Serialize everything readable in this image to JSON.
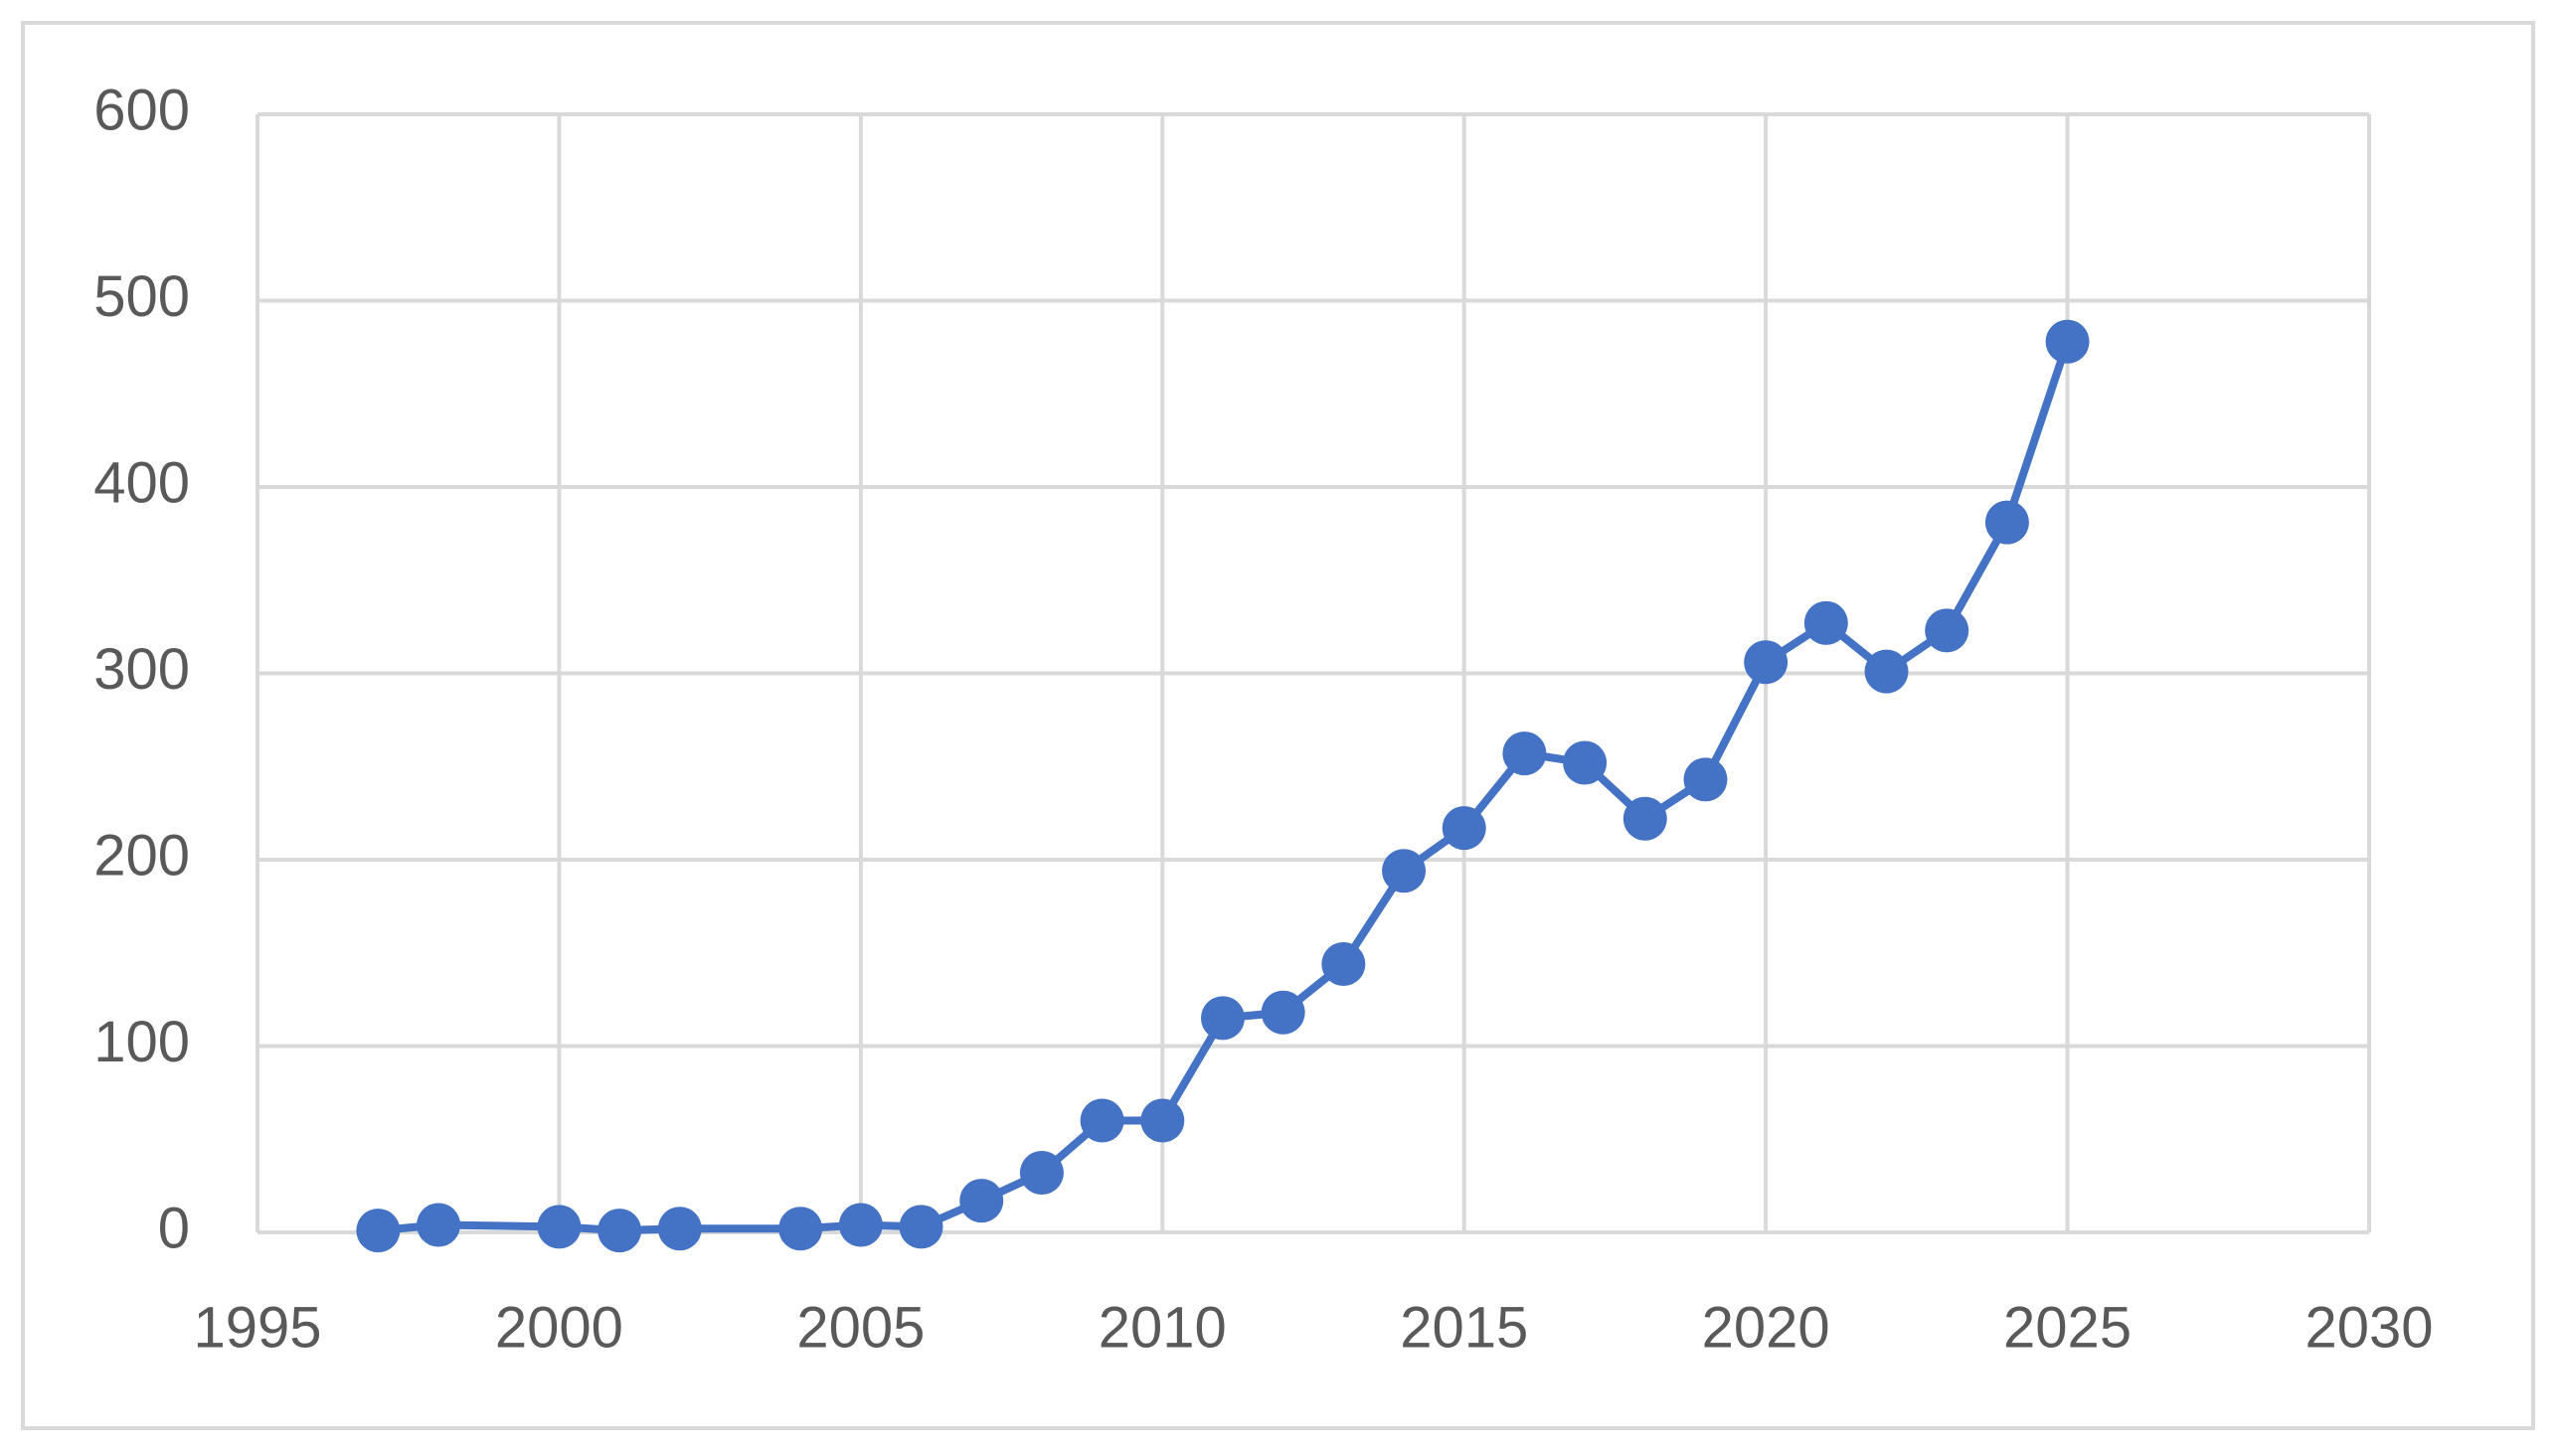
{
  "chart_data": {
    "type": "line",
    "x": [
      1997,
      1998,
      2000,
      2001,
      2002,
      2004,
      2005,
      2006,
      2007,
      2008,
      2009,
      2010,
      2011,
      2012,
      2013,
      2014,
      2015,
      2016,
      2017,
      2018,
      2019,
      2020,
      2021,
      2022,
      2023,
      2024,
      2025
    ],
    "values": [
      1,
      4,
      3,
      1,
      2,
      2,
      4,
      3,
      17,
      32,
      60,
      60,
      115,
      118,
      144,
      194,
      217,
      257,
      252,
      222,
      243,
      306,
      327,
      301,
      323,
      381,
      478
    ],
    "color": "#4472c4",
    "xlim": [
      1995,
      2030
    ],
    "xticks": [
      1995,
      2000,
      2005,
      2010,
      2015,
      2020,
      2025,
      2030
    ],
    "ylim": [
      0,
      600
    ],
    "yticks": [
      0,
      100,
      200,
      300,
      400,
      500,
      600
    ],
    "grid": true
  }
}
